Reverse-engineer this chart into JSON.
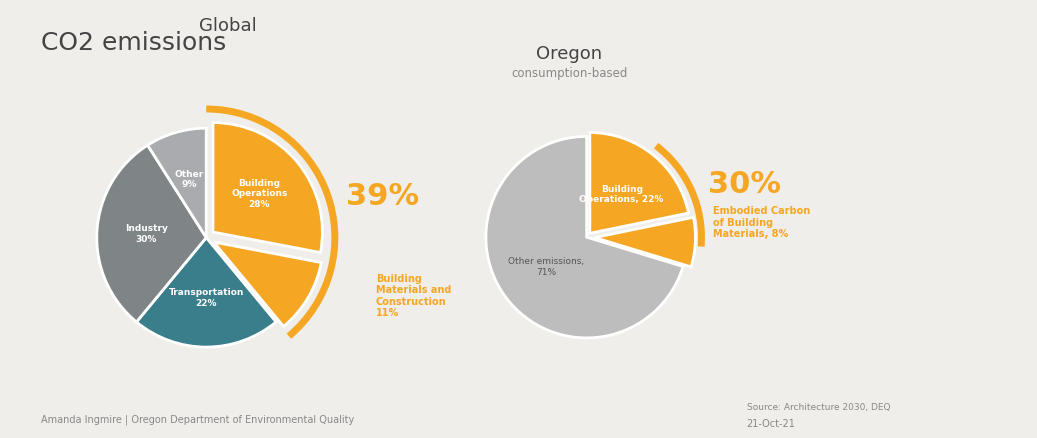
{
  "title": "CO2 emissions",
  "background_color": "#f0eeea",
  "global_title": "Global",
  "oregon_title": "Oregon",
  "oregon_subtitle": "consumption-based",
  "global_slices": [
    28,
    11,
    22,
    30,
    9
  ],
  "global_labels": [
    "Building\nOperations\n28%",
    "Building\nMaterials and\nConstruction\n11%",
    "Transportation\n22%",
    "Industry\n30%",
    "Other\n9%"
  ],
  "global_colors": [
    "#F5A623",
    "#F5A623",
    "#3A7E8C",
    "#7F8487",
    "#A9ABAE"
  ],
  "global_explode": [
    0.08,
    0.08,
    0,
    0,
    0
  ],
  "global_highlight_pct": "39%",
  "oregon_slices": [
    22,
    8,
    71
  ],
  "oregon_labels": [
    "Building\nOperations, 22%",
    "Embodied Carbon\nof Building\nMaterials, 8%",
    "Other emissions,\n71%"
  ],
  "oregon_colors": [
    "#F5A623",
    "#F5A623",
    "#BDBDBD"
  ],
  "oregon_explode": [
    0.05,
    0.08,
    0
  ],
  "oregon_highlight_pct": "30%",
  "highlight_color": "#F5A623",
  "footer_left": "Amanda Ingmire | Oregon Department of Environmental Quality",
  "footer_right": "21-Oct-21",
  "source_text": "Source: Architecture 2030, DEQ",
  "label_color_map": {
    "Building Operations 28": "#FFFFFF",
    "Building Materials": "#F5A623",
    "Transportation": "#FFFFFF",
    "Industry": "#FFFFFF",
    "Other": "#FFFFFF",
    "Building Operations OR": "#FFFFFF",
    "Embodied Carbon": "#F5A623",
    "Other emissions": "#7F8487"
  }
}
